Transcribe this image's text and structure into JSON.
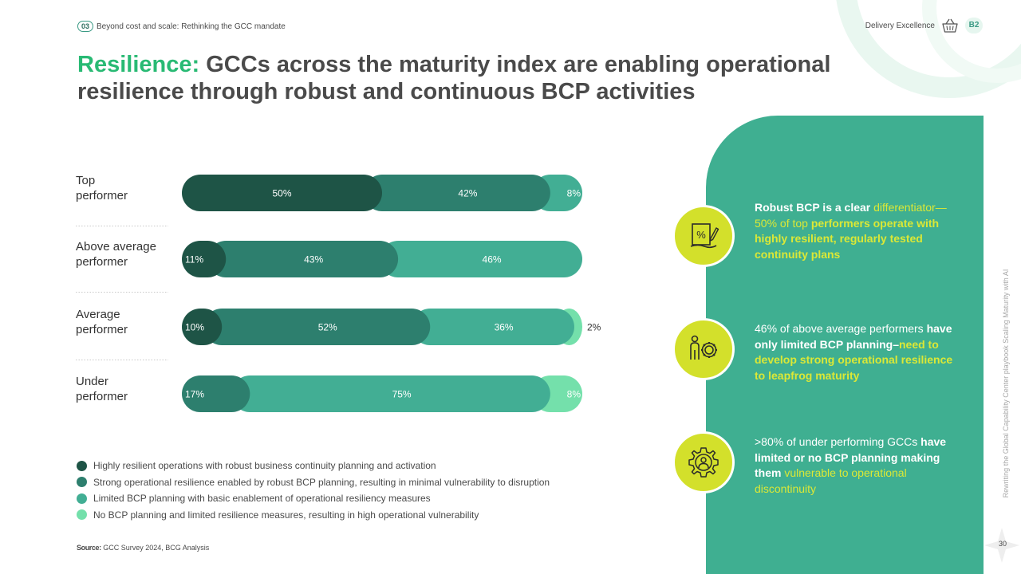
{
  "header": {
    "section_number": "03",
    "section_title": "Beyond cost and scale: Rethinking the GCC mandate",
    "category": "Delivery Excellence",
    "category_icon": "basket-icon",
    "badge": "B2"
  },
  "title": {
    "accent": "Resilience:",
    "rest": " GCCs across the maturity index are enabling operational resilience through robust and continuous BCP activities"
  },
  "chart_data": {
    "type": "bar",
    "orientation": "horizontal",
    "stacked": true,
    "normalized_to_percent": true,
    "categories": [
      "Top performer",
      "Above average performer",
      "Average performer",
      "Under performer"
    ],
    "category_lines": [
      [
        "Top",
        "performer"
      ],
      [
        "Above average",
        "performer"
      ],
      [
        "Average",
        "performer"
      ],
      [
        "Under",
        "performer"
      ]
    ],
    "series": [
      {
        "name": "Highly resilient operations with robust business continuity planning and activation",
        "color": "#1e5446",
        "values": [
          50,
          11,
          10,
          0
        ]
      },
      {
        "name": "Strong operational resilience enabled by robust BCP planning, resulting in minimal vulnerability to disruption",
        "color": "#2d7f6e",
        "values": [
          0,
          43,
          52,
          17
        ]
      },
      {
        "name": "Limited BCP planning with basic enablement of operational resiliency measures",
        "color": "#42ae94",
        "values": [
          42,
          46,
          36,
          75
        ]
      },
      {
        "name": "No BCP planning and limited resilience measures, resulting in high operational vulnerability",
        "color": "#74e0ab",
        "values": [
          8,
          0,
          2,
          8
        ]
      }
    ],
    "segment_colors": [
      [
        "#1e5446",
        "#2d7f6e",
        "#42ae94"
      ],
      [
        "#1e5446",
        "#2d7f6e",
        "#42ae94"
      ],
      [
        "#1e5446",
        "#2d7f6e",
        "#42ae94",
        "#74e0ab"
      ],
      [
        "#2d7f6e",
        "#42ae94",
        "#74e0ab"
      ]
    ],
    "segment_values": [
      [
        50,
        42,
        8
      ],
      [
        11,
        43,
        46
      ],
      [
        10,
        52,
        36,
        2
      ],
      [
        17,
        75,
        8
      ]
    ],
    "segment_labels": [
      [
        "50%",
        "42%",
        "8%"
      ],
      [
        "11%",
        "43%",
        "46%"
      ],
      [
        "10%",
        "52%",
        "36%",
        "2%"
      ],
      [
        "17%",
        "75%",
        "8%"
      ]
    ],
    "xlim": [
      0,
      100
    ],
    "legend_position": "bottom-left",
    "grid": false
  },
  "source": {
    "label": "Source:",
    "text": " GCC Survey 2024, BCG Analysis"
  },
  "insights": [
    {
      "icon": "percent-document-icon",
      "segments": [
        {
          "text": "Robust BCP is a clear ",
          "style": "b"
        },
        {
          "text": "differentiator",
          "style": "y"
        },
        {
          "text": "—50% of top ",
          "style": "y"
        },
        {
          "text": "performers operate with highly resilient, regularly tested continuity plans",
          "style": "y b"
        }
      ]
    },
    {
      "icon": "person-gear-icon",
      "segments": [
        {
          "text": "46% of above average performers ",
          "style": ""
        },
        {
          "text": "have only limited BCP planning–",
          "style": "b"
        },
        {
          "text": "need to develop strong operational resilience to leapfrog maturity",
          "style": "y b"
        }
      ]
    },
    {
      "icon": "gear-person-icon",
      "segments": [
        {
          "text": ">80% of under performing GCCs ",
          "style": ""
        },
        {
          "text": "have limited or no BCP planning making them ",
          "style": "b"
        },
        {
          "text": "vulnerable to operational discontinuity",
          "style": "y"
        }
      ]
    }
  ],
  "side_text": "Rewriting the Global Capability Center playbook Scaling Maturity with AI",
  "page_number": "30"
}
